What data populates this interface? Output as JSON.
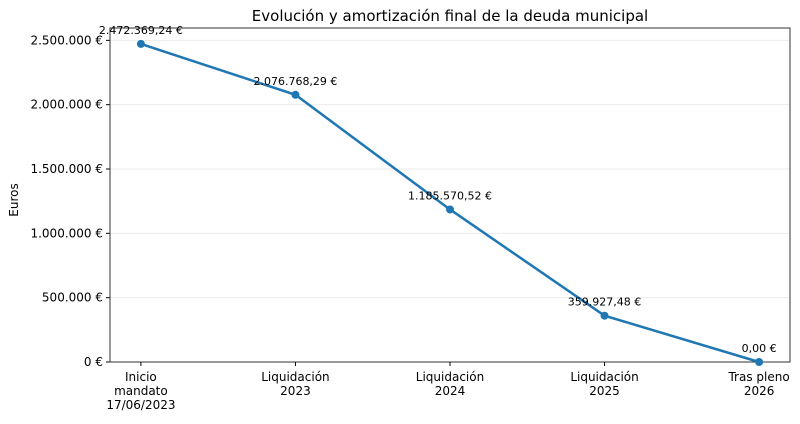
{
  "chart_data": {
    "type": "line",
    "title": "Evolución y amortización final de la deuda municipal",
    "xlabel": "",
    "ylabel": "Euros",
    "categories": [
      [
        "Inicio",
        "mandato",
        "17/06/2023"
      ],
      [
        "Liquidación",
        "2023"
      ],
      [
        "Liquidación",
        "2024"
      ],
      [
        "Liquidación",
        "2025"
      ],
      [
        "Tras pleno",
        "2026"
      ]
    ],
    "values": [
      2472369.24,
      2076768.29,
      1185570.52,
      359927.48,
      0
    ],
    "data_labels": [
      "2.472.369,24 €",
      "2.076.768,29 €",
      "1.185.570,52 €",
      "359.927,48 €",
      "0,00 €"
    ],
    "yticks": [
      0,
      500000,
      1000000,
      1500000,
      2000000,
      2500000
    ],
    "ytick_labels": [
      "0 €",
      "500.000 €",
      "1.000.000 €",
      "1.500.000 €",
      "2.000.000 €",
      "2.500.000 €"
    ],
    "ylim": [
      0,
      2596000
    ],
    "xlim": [
      -0.2,
      4.2
    ],
    "grid": "horizontal",
    "color": "#1f77b4",
    "markers": true
  }
}
